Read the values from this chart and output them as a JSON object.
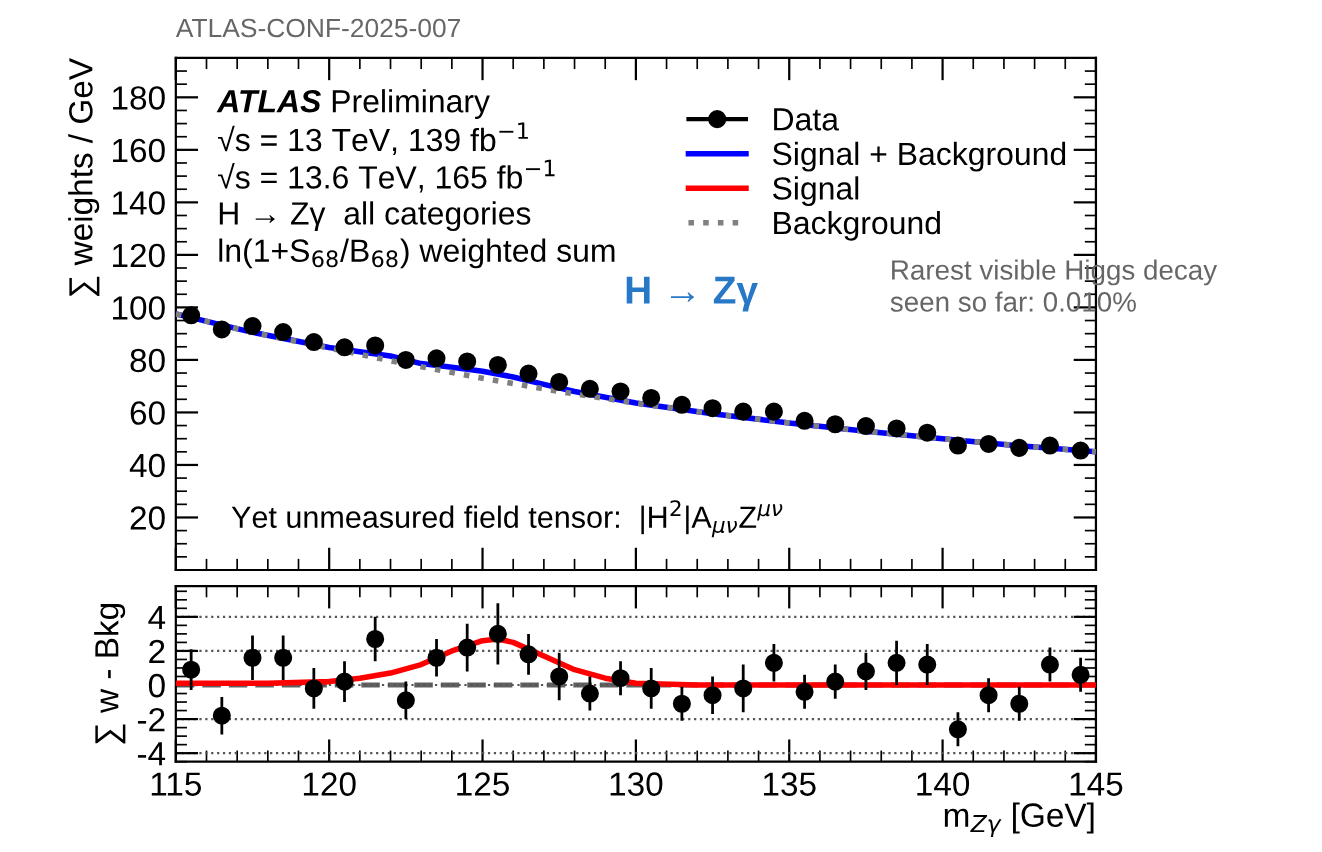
{
  "chart_data": [
    {
      "type": "scatter",
      "ylabel": "∑ weights / GeV",
      "xlim": [
        115,
        145
      ],
      "xticks": [
        115,
        120,
        125,
        130,
        135,
        140,
        145
      ],
      "ylim": [
        0,
        195
      ],
      "yticks": [
        20,
        40,
        60,
        80,
        100,
        120,
        140,
        160,
        180
      ],
      "tick_labels": "y",
      "legend": "top right",
      "grid": false,
      "annotations": [
        "ATLAS-CONF-2025-007",
        "ATLAS Preliminary",
        "√s = 13 TeV, 139 fb$^{−1}$",
        "√s = 13.6 TeV, 165 fb$^{−1}$",
        "H → Zγ  all categories",
        "ln(1+S$_{68}$/B$_{68}$) weighted sum",
        "H → Zγ",
        "Rarest visible Higgs decay\nseen so far: 0.010%",
        "Yet unmeasured field tensor:  |H$^{2}$|A$_{μν}$Z$^{μν}$"
      ],
      "series": [
        {
          "name": "Data",
          "color": "#000000",
          "marker": "circle",
          "x": [
            115.5,
            116.5,
            117.5,
            118.5,
            119.5,
            120.5,
            121.5,
            122.5,
            123.5,
            124.5,
            125.5,
            126.5,
            127.5,
            128.5,
            129.5,
            130.5,
            131.5,
            132.5,
            133.5,
            134.5,
            135.5,
            136.5,
            137.5,
            138.5,
            139.5,
            140.5,
            141.5,
            142.5,
            143.5,
            144.5
          ],
          "values": [
            97,
            91.6,
            92.9,
            90.6,
            86.8,
            84.8,
            85.5,
            80,
            80.6,
            79.4,
            78.1,
            74.8,
            71.6,
            69,
            68,
            65.5,
            62.9,
            61.6,
            60.3,
            60.3,
            56.8,
            55.5,
            54.8,
            53.9,
            52.3,
            47.4,
            48,
            46.5,
            47.4,
            45.5
          ]
        },
        {
          "name": "Signal + Background",
          "type": "line",
          "color": "#0000ff",
          "line_style": "solid",
          "x": [
            115,
            117.5,
            120,
            122,
            123,
            124,
            125,
            126,
            127,
            128,
            130,
            132.5,
            135,
            137.5,
            140,
            142.5,
            145
          ],
          "values": [
            97.5,
            90.5,
            84.7,
            81.5,
            78.6,
            77.2,
            75.7,
            73.5,
            70.7,
            68,
            63.6,
            59.5,
            56,
            52.8,
            50,
            47.3,
            45
          ]
        },
        {
          "name": "Background",
          "type": "line",
          "color": "#808080",
          "line_style": "dotted",
          "x": [
            115,
            117.5,
            120,
            122.5,
            125,
            127.5,
            130,
            132.5,
            135,
            137.5,
            140,
            142.5,
            145
          ],
          "values": [
            97.5,
            90.5,
            84.5,
            78.5,
            73,
            68,
            63.5,
            59.5,
            56,
            52.8,
            50,
            47.3,
            45
          ]
        }
      ]
    },
    {
      "type": "scatter",
      "xlabel": "m$_{Zγ}$ [GeV]",
      "ylabel": "∑ w - Bkg",
      "xlim": [
        115,
        145
      ],
      "xticks": [
        115,
        120,
        125,
        130,
        135,
        140,
        145
      ],
      "ylim": [
        -4.5,
        5.8
      ],
      "yticks": [
        -4,
        -2,
        0,
        2,
        4
      ],
      "grid": "y",
      "ref_lines": [
        {
          "axis": "y",
          "value": 0,
          "label": null,
          "color": "#606060",
          "line_style": "dashed"
        }
      ],
      "series": [
        {
          "color": "#000000",
          "marker": "circle",
          "x": [
            115.5,
            116.5,
            117.5,
            118.5,
            119.5,
            120.5,
            121.5,
            122.5,
            123.5,
            124.5,
            125.5,
            126.5,
            127.5,
            128.5,
            129.5,
            130.5,
            131.5,
            132.5,
            133.5,
            134.5,
            135.5,
            136.5,
            137.5,
            138.5,
            139.5,
            140.5,
            141.5,
            142.5,
            143.5,
            144.5
          ],
          "values": [
            0.9,
            -1.8,
            1.6,
            1.6,
            -0.2,
            0.2,
            2.7,
            -0.9,
            1.6,
            2.2,
            3.0,
            1.8,
            0.5,
            -0.5,
            0.4,
            -0.2,
            -1.1,
            -0.6,
            -0.2,
            1.3,
            -0.4,
            0.2,
            0.8,
            1.3,
            1.2,
            -2.6,
            -0.6,
            -1.1,
            1.2,
            0.6
          ],
          "errors": [
            1.2,
            1.1,
            1.3,
            1.3,
            1.2,
            1.2,
            1.3,
            1.1,
            1.1,
            1.4,
            1.8,
            1.2,
            1.4,
            1.0,
            1.0,
            1.2,
            1.0,
            1.1,
            1.4,
            1.1,
            1.0,
            1.0,
            1.1,
            1.3,
            1.2,
            1.0,
            1.0,
            1.0,
            1.0,
            1.0
          ]
        },
        {
          "name": "Signal",
          "type": "line",
          "color": "#ff0000",
          "line_style": "solid",
          "x": [
            115,
            118,
            120,
            121,
            122,
            123,
            124,
            125,
            125.5,
            126,
            127,
            128,
            129,
            130,
            132,
            135,
            140,
            145
          ],
          "values": [
            0.1,
            0.1,
            0.2,
            0.4,
            0.7,
            1.2,
            2.0,
            2.6,
            2.7,
            2.5,
            1.7,
            0.9,
            0.4,
            0.1,
            0,
            0,
            0,
            0
          ]
        }
      ]
    }
  ]
}
